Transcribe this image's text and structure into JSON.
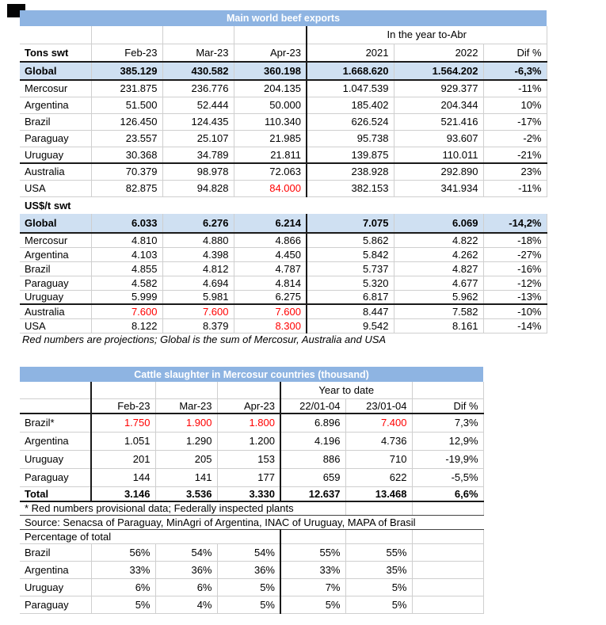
{
  "colors": {
    "title_bar": "#8EB4E2",
    "highlight_row": "#CFE0F2",
    "projection_red": "#FF0000",
    "grid_line": "#CFCFCF",
    "section_border": "#1A1A1A"
  },
  "beef_table": {
    "title": "Main world beef exports",
    "year_span_header": "In the year to-Abr",
    "header": {
      "label": "Tons swt",
      "cols": [
        "Feb-23",
        "Mar-23",
        "Apr-23",
        "2021",
        "2022",
        "Dif %"
      ]
    },
    "tons_global": {
      "label": "Global",
      "values": [
        "385.129",
        "430.582",
        "360.198",
        "1.668.620",
        "1.564.202",
        "-6,3%"
      ]
    },
    "tons_rows": [
      {
        "label": "Mercosur",
        "values": [
          "231.875",
          "236.776",
          "204.135",
          "1.047.539",
          "929.377",
          "-11%"
        ]
      },
      {
        "label": "Argentina",
        "values": [
          "51.500",
          "52.444",
          "50.000",
          "185.402",
          "204.344",
          "10%"
        ]
      },
      {
        "label": "Brazil",
        "values": [
          "126.450",
          "124.435",
          "110.340",
          "626.524",
          "521.416",
          "-17%"
        ]
      },
      {
        "label": "Paraguay",
        "values": [
          "23.557",
          "25.107",
          "21.985",
          "95.738",
          "93.607",
          "-2%"
        ]
      },
      {
        "label": "Uruguay",
        "values": [
          "30.368",
          "34.789",
          "21.811",
          "139.875",
          "110.011",
          "-21%"
        ],
        "thick_bottom": true
      },
      {
        "label": "Australia",
        "values": [
          "70.379",
          "98.978",
          "72.063",
          "238.928",
          "292.890",
          "23%"
        ]
      },
      {
        "label": "USA",
        "values": [
          "82.875",
          "94.828",
          "84.000",
          "382.153",
          "341.934",
          "-11%"
        ],
        "red": [
          2
        ]
      }
    ],
    "usd_section_label": "US$/t swt",
    "usd_global": {
      "label": "Global",
      "values": [
        "6.033",
        "6.276",
        "6.214",
        "7.075",
        "6.069",
        "-14,2%"
      ]
    },
    "usd_rows": [
      {
        "label": "Mercosur",
        "values": [
          "4.810",
          "4.880",
          "4.866",
          "5.862",
          "4.822",
          "-18%"
        ]
      },
      {
        "label": "Argentina",
        "values": [
          "4.103",
          "4.398",
          "4.450",
          "5.842",
          "4.262",
          "-27%"
        ]
      },
      {
        "label": "Brazil",
        "values": [
          "4.855",
          "4.812",
          "4.787",
          "5.737",
          "4.827",
          "-16%"
        ]
      },
      {
        "label": "Paraguay",
        "values": [
          "4.582",
          "4.694",
          "4.814",
          "5.320",
          "4.677",
          "-12%"
        ]
      },
      {
        "label": "Uruguay",
        "values": [
          "5.999",
          "5.981",
          "6.275",
          "6.817",
          "5.962",
          "-13%"
        ],
        "thick_bottom": true
      },
      {
        "label": "Australia",
        "values": [
          "7.600",
          "7.600",
          "7.600",
          "8.447",
          "7.582",
          "-10%"
        ],
        "red": [
          0,
          1,
          2
        ]
      },
      {
        "label": "USA",
        "values": [
          "8.122",
          "8.379",
          "8.300",
          "9.542",
          "8.161",
          "-14%"
        ],
        "red": [
          2
        ]
      }
    ],
    "footnote": "Red numbers are projections; Global is the sum of Mercosur, Australia and USA"
  },
  "cattle_table": {
    "title": "Cattle slaughter in Mercosur countries (thousand)",
    "year_span_header": "Year to date",
    "header": {
      "label": "",
      "cols": [
        "Feb-23",
        "Mar-23",
        "Apr-23",
        "22/01-04",
        "23/01-04",
        "Dif %"
      ]
    },
    "rows": [
      {
        "label": "Brazil*",
        "values": [
          "1.750",
          "1.900",
          "1.800",
          "6.896",
          "7.400",
          "7,3%"
        ],
        "red": [
          0,
          1,
          2,
          4
        ]
      },
      {
        "label": "Argentina",
        "values": [
          "1.051",
          "1.290",
          "1.200",
          "4.196",
          "4.736",
          "12,9%"
        ]
      },
      {
        "label": "Uruguay",
        "values": [
          "201",
          "205",
          "153",
          "886",
          "710",
          "-19,9%"
        ]
      },
      {
        "label": "Paraguay",
        "values": [
          "144",
          "141",
          "177",
          "659",
          "622",
          "-5,5%"
        ]
      }
    ],
    "total_row": {
      "label": "Total",
      "values": [
        "3.146",
        "3.536",
        "3.330",
        "12.637",
        "13.468",
        "6,6%"
      ]
    },
    "footnote1": "* Red numbers provisional data; Federally inspected plants",
    "footnote2": "Source: Senacsa of Paraguay, MinAgri of Argentina, INAC of Uruguay, MAPA of Brasil",
    "pct_label": "Percentage of total",
    "pct_rows": [
      {
        "label": "Brazil",
        "values": [
          "56%",
          "54%",
          "54%",
          "55%",
          "55%",
          ""
        ]
      },
      {
        "label": "Argentina",
        "values": [
          "33%",
          "36%",
          "36%",
          "33%",
          "35%",
          ""
        ]
      },
      {
        "label": "Uruguay",
        "values": [
          "6%",
          "6%",
          "5%",
          "7%",
          "5%",
          ""
        ]
      },
      {
        "label": "Paraguay",
        "values": [
          "5%",
          "4%",
          "5%",
          "5%",
          "5%",
          ""
        ]
      }
    ]
  }
}
